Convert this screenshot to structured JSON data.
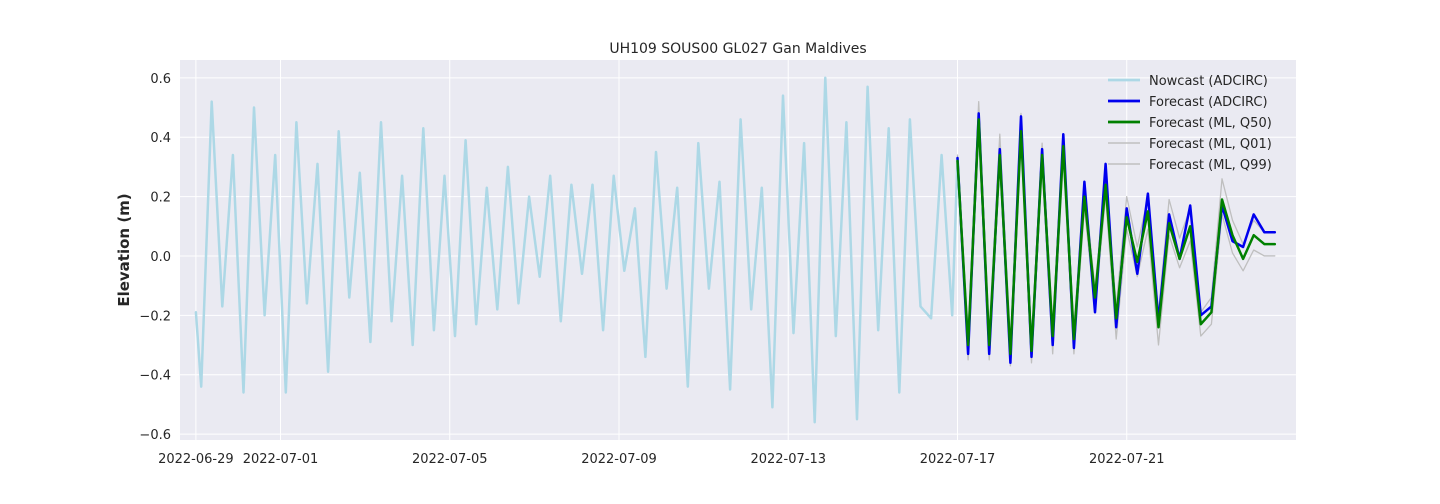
{
  "chart_data": {
    "type": "line",
    "title": "UH109 SOUS00 GL027 Gan Maldives",
    "xlabel": "",
    "ylabel": "Elevation (m)",
    "xlim": [
      "2022-06-28T15:00",
      "2022-07-25T00:00"
    ],
    "ylim": [
      -0.62,
      0.66
    ],
    "x_ticks": [
      "2022-06-29",
      "2022-07-01",
      "2022-07-05",
      "2022-07-09",
      "2022-07-13",
      "2022-07-17",
      "2022-07-21"
    ],
    "y_ticks": [
      -0.6,
      -0.4,
      -0.2,
      0.0,
      0.2,
      0.4,
      0.6
    ],
    "y_tick_labels": [
      "−0.6",
      "−0.4",
      "−0.2",
      "0.0",
      "0.2",
      "0.4",
      "0.6"
    ],
    "grid": true,
    "legend": "top-right",
    "colors": {
      "background": "#eaeaf2",
      "grid": "#ffffff"
    },
    "series": [
      {
        "name": "Nowcast (ADCIRC)",
        "color": "#add8e6",
        "width": 2.5,
        "x": [
          "2022-06-29T00:00",
          "2022-06-29T03:00",
          "2022-06-29T09:00",
          "2022-06-29T15:00",
          "2022-06-29T21:00",
          "2022-06-30T03:00",
          "2022-06-30T09:00",
          "2022-06-30T15:00",
          "2022-06-30T21:00",
          "2022-07-01T03:00",
          "2022-07-01T09:00",
          "2022-07-01T15:00",
          "2022-07-01T21:00",
          "2022-07-02T03:00",
          "2022-07-02T09:00",
          "2022-07-02T15:00",
          "2022-07-02T21:00",
          "2022-07-03T03:00",
          "2022-07-03T09:00",
          "2022-07-03T15:00",
          "2022-07-03T21:00",
          "2022-07-04T03:00",
          "2022-07-04T09:00",
          "2022-07-04T15:00",
          "2022-07-04T21:00",
          "2022-07-05T03:00",
          "2022-07-05T09:00",
          "2022-07-05T15:00",
          "2022-07-05T21:00",
          "2022-07-06T03:00",
          "2022-07-06T09:00",
          "2022-07-06T15:00",
          "2022-07-06T21:00",
          "2022-07-07T03:00",
          "2022-07-07T09:00",
          "2022-07-07T15:00",
          "2022-07-07T21:00",
          "2022-07-08T03:00",
          "2022-07-08T09:00",
          "2022-07-08T15:00",
          "2022-07-08T21:00",
          "2022-07-09T03:00",
          "2022-07-09T09:00",
          "2022-07-09T15:00",
          "2022-07-09T21:00",
          "2022-07-10T03:00",
          "2022-07-10T09:00",
          "2022-07-10T15:00",
          "2022-07-10T21:00",
          "2022-07-11T03:00",
          "2022-07-11T09:00",
          "2022-07-11T15:00",
          "2022-07-11T21:00",
          "2022-07-12T03:00",
          "2022-07-12T09:00",
          "2022-07-12T15:00",
          "2022-07-12T21:00",
          "2022-07-13T03:00",
          "2022-07-13T09:00",
          "2022-07-13T15:00",
          "2022-07-13T21:00",
          "2022-07-14T03:00",
          "2022-07-14T09:00",
          "2022-07-14T15:00",
          "2022-07-14T21:00",
          "2022-07-15T03:00",
          "2022-07-15T09:00",
          "2022-07-15T15:00",
          "2022-07-15T21:00",
          "2022-07-16T03:00",
          "2022-07-16T09:00",
          "2022-07-16T15:00",
          "2022-07-16T21:00",
          "2022-07-17T00:00"
        ],
        "values": [
          -0.19,
          -0.44,
          0.52,
          -0.17,
          0.34,
          -0.46,
          0.5,
          -0.2,
          0.34,
          -0.46,
          0.45,
          -0.16,
          0.31,
          -0.39,
          0.42,
          -0.14,
          0.28,
          -0.29,
          0.45,
          -0.22,
          0.27,
          -0.3,
          0.43,
          -0.25,
          0.27,
          -0.27,
          0.39,
          -0.23,
          0.23,
          -0.18,
          0.3,
          -0.16,
          0.2,
          -0.07,
          0.27,
          -0.22,
          0.24,
          -0.06,
          0.24,
          -0.25,
          0.27,
          -0.05,
          0.16,
          -0.34,
          0.35,
          -0.11,
          0.23,
          -0.44,
          0.38,
          -0.11,
          0.25,
          -0.45,
          0.46,
          -0.18,
          0.23,
          -0.51,
          0.54,
          -0.26,
          0.38,
          -0.56,
          0.6,
          -0.27,
          0.45,
          -0.55,
          0.57,
          -0.25,
          0.43,
          -0.46,
          0.46,
          -0.17,
          -0.21,
          0.34,
          -0.2,
          0.33
        ]
      },
      {
        "name": "Forecast (ADCIRC)",
        "color": "#0000ee",
        "width": 2.5,
        "x": [
          "2022-07-17T00:00",
          "2022-07-17T06:00",
          "2022-07-17T12:00",
          "2022-07-17T18:00",
          "2022-07-18T00:00",
          "2022-07-18T06:00",
          "2022-07-18T12:00",
          "2022-07-18T18:00",
          "2022-07-19T00:00",
          "2022-07-19T06:00",
          "2022-07-19T12:00",
          "2022-07-19T18:00",
          "2022-07-20T00:00",
          "2022-07-20T06:00",
          "2022-07-20T12:00",
          "2022-07-20T18:00",
          "2022-07-21T00:00",
          "2022-07-21T06:00",
          "2022-07-21T12:00",
          "2022-07-21T18:00",
          "2022-07-22T00:00",
          "2022-07-22T06:00",
          "2022-07-22T12:00",
          "2022-07-22T18:00",
          "2022-07-23T00:00",
          "2022-07-23T06:00",
          "2022-07-23T12:00",
          "2022-07-23T18:00",
          "2022-07-24T00:00",
          "2022-07-24T06:00",
          "2022-07-24T12:00"
        ],
        "values": [
          0.33,
          -0.33,
          0.48,
          -0.33,
          0.36,
          -0.36,
          0.47,
          -0.34,
          0.36,
          -0.3,
          0.41,
          -0.31,
          0.25,
          -0.19,
          0.31,
          -0.24,
          0.16,
          -0.06,
          0.21,
          -0.22,
          0.14,
          -0.01,
          0.17,
          -0.2,
          -0.17,
          0.17,
          0.05,
          0.03,
          0.14,
          0.08,
          0.08
        ]
      },
      {
        "name": "Forecast (ML, Q50)",
        "color": "#008000",
        "width": 2.5,
        "x": [
          "2022-07-17T00:00",
          "2022-07-17T06:00",
          "2022-07-17T12:00",
          "2022-07-17T18:00",
          "2022-07-18T00:00",
          "2022-07-18T06:00",
          "2022-07-18T12:00",
          "2022-07-18T18:00",
          "2022-07-19T00:00",
          "2022-07-19T06:00",
          "2022-07-19T12:00",
          "2022-07-19T18:00",
          "2022-07-20T00:00",
          "2022-07-20T06:00",
          "2022-07-20T12:00",
          "2022-07-20T18:00",
          "2022-07-21T00:00",
          "2022-07-21T06:00",
          "2022-07-21T12:00",
          "2022-07-21T18:00",
          "2022-07-22T00:00",
          "2022-07-22T06:00",
          "2022-07-22T12:00",
          "2022-07-22T18:00",
          "2022-07-23T00:00",
          "2022-07-23T06:00",
          "2022-07-23T12:00",
          "2022-07-23T18:00",
          "2022-07-24T00:00",
          "2022-07-24T06:00",
          "2022-07-24T12:00"
        ],
        "values": [
          0.32,
          -0.3,
          0.46,
          -0.3,
          0.34,
          -0.33,
          0.42,
          -0.32,
          0.34,
          -0.27,
          0.37,
          -0.28,
          0.2,
          -0.14,
          0.24,
          -0.21,
          0.13,
          -0.02,
          0.15,
          -0.24,
          0.11,
          -0.01,
          0.1,
          -0.23,
          -0.19,
          0.19,
          0.07,
          -0.01,
          0.07,
          0.04,
          0.04
        ]
      },
      {
        "name": "Forecast (ML, Q01)",
        "color": "#bfbfbf",
        "width": 1.3,
        "x": [
          "2022-07-17T00:00",
          "2022-07-17T06:00",
          "2022-07-17T12:00",
          "2022-07-17T18:00",
          "2022-07-18T00:00",
          "2022-07-18T06:00",
          "2022-07-18T12:00",
          "2022-07-18T18:00",
          "2022-07-19T00:00",
          "2022-07-19T06:00",
          "2022-07-19T12:00",
          "2022-07-19T18:00",
          "2022-07-20T00:00",
          "2022-07-20T06:00",
          "2022-07-20T12:00",
          "2022-07-20T18:00",
          "2022-07-21T00:00",
          "2022-07-21T06:00",
          "2022-07-21T12:00",
          "2022-07-21T18:00",
          "2022-07-22T00:00",
          "2022-07-22T06:00",
          "2022-07-22T12:00",
          "2022-07-22T18:00",
          "2022-07-23T00:00",
          "2022-07-23T06:00",
          "2022-07-23T12:00",
          "2022-07-23T18:00",
          "2022-07-24T00:00",
          "2022-07-24T06:00",
          "2022-07-24T12:00"
        ],
        "values": [
          0.3,
          -0.35,
          0.44,
          -0.35,
          0.32,
          -0.37,
          0.4,
          -0.36,
          0.3,
          -0.33,
          0.33,
          -0.33,
          0.16,
          -0.18,
          0.2,
          -0.28,
          0.09,
          -0.07,
          0.09,
          -0.3,
          0.07,
          -0.04,
          0.05,
          -0.27,
          -0.23,
          0.14,
          0.01,
          -0.05,
          0.02,
          0.0,
          0.0
        ]
      },
      {
        "name": "Forecast (ML, Q99)",
        "color": "#bfbfbf",
        "width": 1.3,
        "x": [
          "2022-07-17T00:00",
          "2022-07-17T06:00",
          "2022-07-17T12:00",
          "2022-07-17T18:00",
          "2022-07-18T00:00",
          "2022-07-18T06:00",
          "2022-07-18T12:00",
          "2022-07-18T18:00",
          "2022-07-19T00:00",
          "2022-07-19T06:00",
          "2022-07-19T12:00",
          "2022-07-19T18:00",
          "2022-07-20T00:00",
          "2022-07-20T06:00",
          "2022-07-20T12:00",
          "2022-07-20T18:00",
          "2022-07-21T00:00",
          "2022-07-21T06:00",
          "2022-07-21T12:00",
          "2022-07-21T18:00",
          "2022-07-22T00:00",
          "2022-07-22T06:00",
          "2022-07-22T12:00",
          "2022-07-22T18:00",
          "2022-07-23T00:00",
          "2022-07-23T06:00",
          "2022-07-23T12:00",
          "2022-07-23T18:00",
          "2022-07-24T00:00",
          "2022-07-24T06:00",
          "2022-07-24T12:00"
        ],
        "values": [
          0.34,
          -0.26,
          0.52,
          -0.26,
          0.41,
          -0.29,
          0.48,
          -0.28,
          0.38,
          -0.23,
          0.4,
          -0.24,
          0.24,
          -0.11,
          0.27,
          -0.17,
          0.2,
          0.03,
          0.2,
          -0.19,
          0.19,
          0.06,
          0.16,
          -0.19,
          -0.14,
          0.26,
          0.12,
          0.04,
          0.12,
          0.08,
          0.08
        ]
      }
    ]
  }
}
